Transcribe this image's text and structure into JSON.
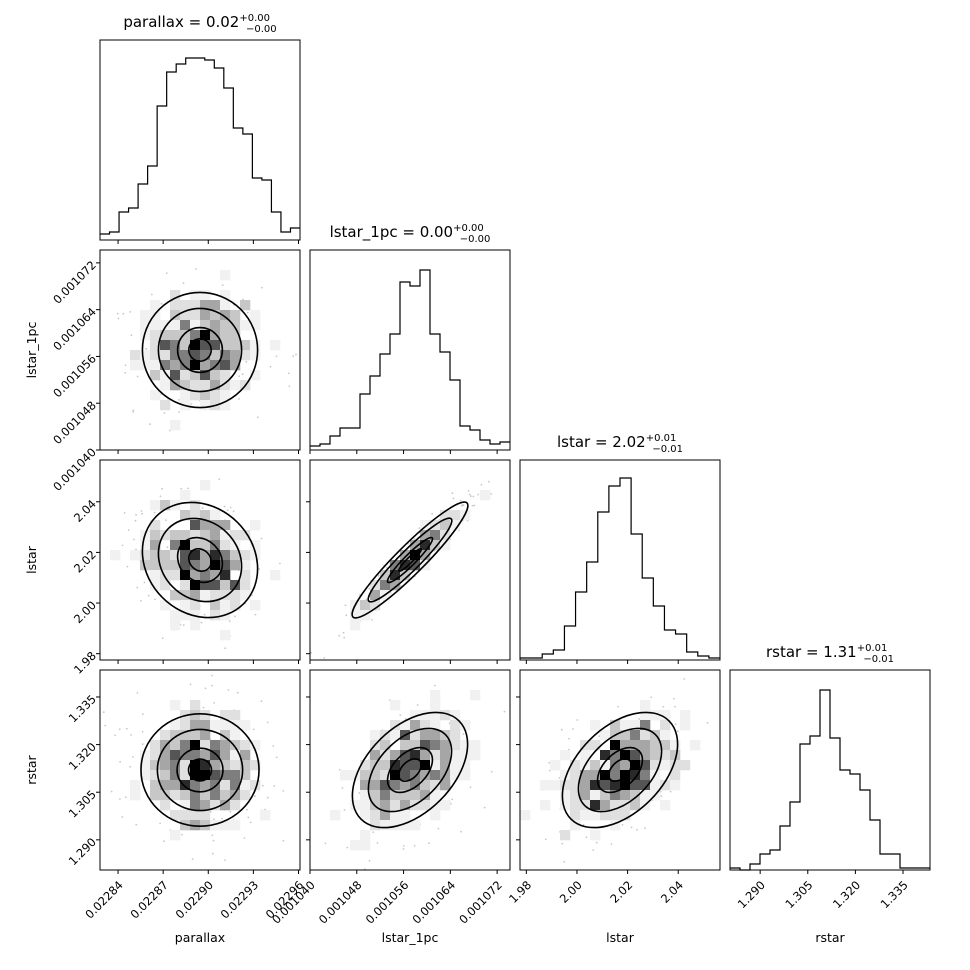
{
  "chart_data": {
    "type": "corner",
    "parameters": [
      {
        "name": "parallax",
        "title_prefix": "parallax = ",
        "title_value": "0.02",
        "title_upper": "+0.00",
        "title_lower": "−0.00",
        "range": [
          0.022828,
          0.022961
        ],
        "ticks": [
          "0.02284",
          "0.02287",
          "0.02290",
          "0.02293",
          "0.02296"
        ],
        "tick_values": [
          0.02284,
          0.02287,
          0.0229,
          0.02293,
          0.02296
        ],
        "hist": [
          0.03,
          0.04,
          0.14,
          0.16,
          0.28,
          0.37,
          0.67,
          0.84,
          0.88,
          0.91,
          0.91,
          0.9,
          0.86,
          0.76,
          0.56,
          0.53,
          0.31,
          0.3,
          0.14,
          0.04,
          0.06
        ]
      },
      {
        "name": "lstar_1pc",
        "title_prefix": "lstar_1pc = ",
        "title_value": "0.00",
        "title_upper": "+0.00",
        "title_lower": "−0.00",
        "range": [
          0.00104,
          0.0010742
        ],
        "ticks": [
          "0.001040",
          "0.001048",
          "0.001056",
          "0.001064",
          "0.001072"
        ],
        "tick_values": [
          0.00104,
          0.001048,
          0.001056,
          0.001064,
          0.001072
        ],
        "hist": [
          0.02,
          0.03,
          0.07,
          0.11,
          0.11,
          0.28,
          0.37,
          0.48,
          0.58,
          0.84,
          0.82,
          0.9,
          0.58,
          0.49,
          0.35,
          0.12,
          0.1,
          0.05,
          0.03,
          0.04
        ]
      },
      {
        "name": "lstar",
        "title_prefix": "lstar = ",
        "title_value": "2.02",
        "title_upper": "+0.01",
        "title_lower": "−0.01",
        "range": [
          1.9775,
          2.0565
        ],
        "ticks": [
          "1.98",
          "2.00",
          "2.02",
          "2.04"
        ],
        "tick_values": [
          1.98,
          2.0,
          2.02,
          2.04
        ],
        "hist": [
          0.01,
          0.01,
          0.03,
          0.05,
          0.17,
          0.34,
          0.49,
          0.74,
          0.87,
          0.91,
          0.63,
          0.41,
          0.27,
          0.15,
          0.13,
          0.04,
          0.02,
          0.01
        ]
      },
      {
        "name": "rstar",
        "title_prefix": "rstar = ",
        "title_value": "1.31",
        "title_upper": "+0.01",
        "title_lower": "−0.01",
        "range": [
          1.2805,
          1.3435
        ],
        "ticks": [
          "1.290",
          "1.305",
          "1.320",
          "1.335"
        ],
        "tick_values": [
          1.29,
          1.305,
          1.32,
          1.335
        ],
        "hist": [
          0.01,
          0.0,
          0.03,
          0.08,
          0.1,
          0.22,
          0.34,
          0.63,
          0.67,
          0.9,
          0.66,
          0.5,
          0.48,
          0.4,
          0.25,
          0.08,
          0.08,
          0.01,
          0.01,
          0.01
        ]
      }
    ],
    "correlations": [
      {
        "x": 0,
        "y": 1,
        "rho": 0.0
      },
      {
        "x": 0,
        "y": 2,
        "rho": -0.15
      },
      {
        "x": 1,
        "y": 2,
        "rho": 0.96
      },
      {
        "x": 0,
        "y": 3,
        "rho": -0.05
      },
      {
        "x": 1,
        "y": 3,
        "rho": 0.45
      },
      {
        "x": 2,
        "y": 3,
        "rho": 0.45
      }
    ]
  }
}
